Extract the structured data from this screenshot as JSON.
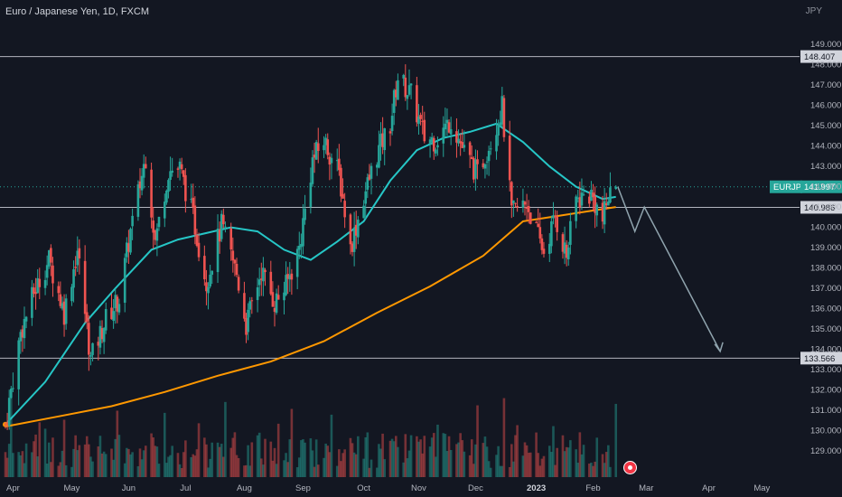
{
  "header": {
    "title": "Euro / Japanese Yen, 1D, FXCM",
    "currency": "JPY"
  },
  "colors": {
    "up": "#26a69a",
    "down": "#ef5350",
    "ma_fast": "#26c6c6",
    "ma_slow": "#ff9800",
    "hline": "#b2b5be",
    "projection": "#90a4ae",
    "background": "#131722",
    "price_label": "#26a69a"
  },
  "chart_data": {
    "type": "candlestick",
    "symbol": "EURJPY",
    "last_price": 141.997,
    "ylim": [
      128.6,
      149.5
    ],
    "y_ticks": [
      "149.000",
      "148.000",
      "147.000",
      "146.000",
      "145.000",
      "144.000",
      "143.000",
      "142.000",
      "141.000",
      "140.000",
      "139.000",
      "138.000",
      "137.000",
      "136.000",
      "135.000",
      "134.000",
      "133.000",
      "132.000",
      "131.000",
      "130.000",
      "129.000"
    ],
    "x_labels": [
      "Apr",
      "May",
      "Jun",
      "Jul",
      "Aug",
      "Sep",
      "Oct",
      "Nov",
      "Dec",
      "2023",
      "Feb",
      "Mar",
      "Apr",
      "May"
    ],
    "horizontal_lines": [
      {
        "value": 148.407,
        "label": "148.407"
      },
      {
        "value": 140.986,
        "label": "140.986"
      },
      {
        "value": 133.566,
        "label": "133.566"
      }
    ],
    "price_path": [
      [
        "2022-03-28",
        130.3
      ],
      [
        "2022-04-05",
        134.8
      ],
      [
        "2022-04-12",
        136.8
      ],
      [
        "2022-04-20",
        138.4
      ],
      [
        "2022-04-28",
        135.8
      ],
      [
        "2022-05-05",
        138.9
      ],
      [
        "2022-05-12",
        133.5
      ],
      [
        "2022-05-20",
        135.5
      ],
      [
        "2022-05-27",
        136.5
      ],
      [
        "2022-06-02",
        139.8
      ],
      [
        "2022-06-10",
        143.5
      ],
      [
        "2022-06-15",
        139.3
      ],
      [
        "2022-06-22",
        142.8
      ],
      [
        "2022-06-28",
        142.9
      ],
      [
        "2022-07-05",
        140.5
      ],
      [
        "2022-07-12",
        137.3
      ],
      [
        "2022-07-20",
        140.1
      ],
      [
        "2022-07-28",
        137.7
      ],
      [
        "2022-08-02",
        135.2
      ],
      [
        "2022-08-10",
        137.9
      ],
      [
        "2022-08-17",
        136.3
      ],
      [
        "2022-08-23",
        137.1
      ],
      [
        "2022-08-30",
        139.0
      ],
      [
        "2022-09-06",
        143.3
      ],
      [
        "2022-09-12",
        144.3
      ],
      [
        "2022-09-20",
        142.6
      ],
      [
        "2022-09-26",
        139.0
      ],
      [
        "2022-10-03",
        141.5
      ],
      [
        "2022-10-10",
        143.6
      ],
      [
        "2022-10-17",
        145.1
      ],
      [
        "2022-10-21",
        147.4
      ],
      [
        "2022-10-28",
        146.5
      ],
      [
        "2022-11-04",
        144.4
      ],
      [
        "2022-11-10",
        144.3
      ],
      [
        "2022-11-18",
        145.3
      ],
      [
        "2022-11-25",
        143.7
      ],
      [
        "2022-12-02",
        142.6
      ],
      [
        "2022-12-09",
        144.3
      ],
      [
        "2022-12-15",
        145.9
      ],
      [
        "2022-12-20",
        140.7
      ],
      [
        "2022-12-28",
        141.2
      ],
      [
        "2023-01-03",
        139.5
      ],
      [
        "2023-01-06",
        138.8
      ],
      [
        "2023-01-12",
        140.5
      ],
      [
        "2023-01-18",
        138.6
      ],
      [
        "2023-01-23",
        141.4
      ],
      [
        "2023-01-31",
        141.6
      ],
      [
        "2023-02-06",
        140.3
      ],
      [
        "2023-02-09",
        141.5
      ],
      [
        "2023-02-13",
        141.997
      ]
    ],
    "ma_fast": [
      [
        "2022-03-28",
        130.3
      ],
      [
        "2022-04-18",
        132.4
      ],
      [
        "2022-05-09",
        135.3
      ],
      [
        "2022-05-25",
        137.0
      ],
      [
        "2022-06-13",
        138.9
      ],
      [
        "2022-06-27",
        139.4
      ],
      [
        "2022-07-11",
        139.7
      ],
      [
        "2022-07-25",
        140.0
      ],
      [
        "2022-08-08",
        139.8
      ],
      [
        "2022-08-22",
        138.9
      ],
      [
        "2022-09-05",
        138.4
      ],
      [
        "2022-09-19",
        139.3
      ],
      [
        "2022-10-03",
        140.3
      ],
      [
        "2022-10-17",
        142.3
      ],
      [
        "2022-10-31",
        143.8
      ],
      [
        "2022-11-14",
        144.4
      ],
      [
        "2022-11-28",
        144.7
      ],
      [
        "2022-12-12",
        145.1
      ],
      [
        "2022-12-26",
        144.2
      ],
      [
        "2023-01-09",
        143.0
      ],
      [
        "2023-01-23",
        142.0
      ],
      [
        "2023-02-06",
        141.4
      ],
      [
        "2023-02-13",
        141.5
      ]
    ],
    "ma_slow": [
      [
        "2022-03-28",
        130.2
      ],
      [
        "2022-04-25",
        130.7
      ],
      [
        "2022-05-23",
        131.2
      ],
      [
        "2022-06-20",
        131.9
      ],
      [
        "2022-07-18",
        132.7
      ],
      [
        "2022-08-15",
        133.4
      ],
      [
        "2022-09-12",
        134.4
      ],
      [
        "2022-10-10",
        135.8
      ],
      [
        "2022-11-07",
        137.1
      ],
      [
        "2022-12-05",
        138.6
      ],
      [
        "2022-12-26",
        140.3
      ],
      [
        "2023-01-16",
        140.6
      ],
      [
        "2023-02-13",
        141.0
      ]
    ],
    "projection": [
      [
        "2023-02-14",
        142.0
      ],
      [
        "2023-02-23",
        139.8
      ],
      [
        "2023-02-28",
        141.0
      ],
      [
        "2023-04-09",
        133.9
      ]
    ],
    "volume_ylim": [
      0,
      100
    ]
  }
}
